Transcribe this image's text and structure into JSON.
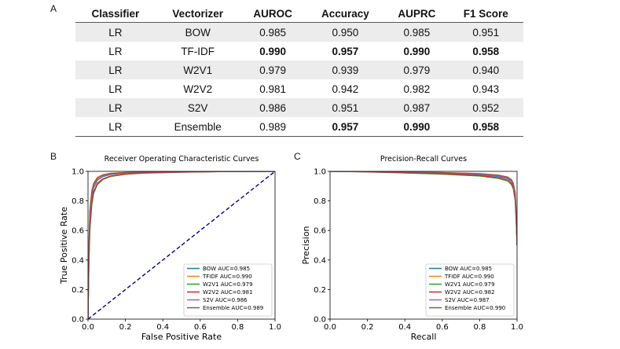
{
  "panels": {
    "a": "A",
    "b": "B",
    "c": "C"
  },
  "table": {
    "headers": [
      "Classifier",
      "Vectorizer",
      "AUROC",
      "Accuracy",
      "AUPRC",
      "F1 Score"
    ],
    "rows": [
      {
        "cells": [
          "LR",
          "BOW",
          "0.985",
          "0.950",
          "0.985",
          "0.951"
        ],
        "bold": [
          false,
          false,
          false,
          false,
          false,
          false
        ]
      },
      {
        "cells": [
          "LR",
          "TF-IDF",
          "0.990",
          "0.957",
          "0.990",
          "0.958"
        ],
        "bold": [
          false,
          false,
          true,
          true,
          true,
          true
        ]
      },
      {
        "cells": [
          "LR",
          "W2V1",
          "0.979",
          "0.939",
          "0.979",
          "0.940"
        ],
        "bold": [
          false,
          false,
          false,
          false,
          false,
          false
        ]
      },
      {
        "cells": [
          "LR",
          "W2V2",
          "0.981",
          "0.942",
          "0.982",
          "0.943"
        ],
        "bold": [
          false,
          false,
          false,
          false,
          false,
          false
        ]
      },
      {
        "cells": [
          "LR",
          "S2V",
          "0.986",
          "0.951",
          "0.987",
          "0.952"
        ],
        "bold": [
          false,
          false,
          false,
          false,
          false,
          false
        ]
      },
      {
        "cells": [
          "LR",
          "Ensemble",
          "0.989",
          "0.957",
          "0.990",
          "0.958"
        ],
        "bold": [
          false,
          false,
          false,
          true,
          true,
          true
        ]
      }
    ]
  },
  "chart_data": [
    {
      "type": "line",
      "title": "Receiver Operating Characteristic Curves",
      "xlabel": "False Positive Rate",
      "ylabel": "True Positive Rate",
      "xlim": [
        0,
        1
      ],
      "ylim": [
        0,
        1
      ],
      "xticks": [
        "0.0",
        "0.2",
        "0.4",
        "0.6",
        "0.8",
        "1.0"
      ],
      "yticks": [
        "0.0",
        "0.2",
        "0.4",
        "0.6",
        "0.8",
        "1.0"
      ],
      "legend_position": "bottom-right",
      "diagonal": {
        "x": [
          0,
          1
        ],
        "y": [
          0,
          1
        ],
        "color": "#00008b"
      },
      "series": [
        {
          "name": "BOW AUC=0.985",
          "color": "#1f77b4",
          "x": [
            0,
            0.005,
            0.01,
            0.02,
            0.03,
            0.05,
            0.08,
            0.12,
            0.2,
            0.3,
            0.5,
            0.7,
            1.0
          ],
          "y": [
            0,
            0.45,
            0.68,
            0.83,
            0.89,
            0.94,
            0.965,
            0.978,
            0.988,
            0.993,
            0.997,
            0.999,
            1.0
          ]
        },
        {
          "name": "TFIDF AUC=0.990",
          "color": "#ff7f0e",
          "x": [
            0,
            0.005,
            0.01,
            0.02,
            0.03,
            0.05,
            0.08,
            0.12,
            0.2,
            0.3,
            0.5,
            0.7,
            1.0
          ],
          "y": [
            0,
            0.5,
            0.74,
            0.87,
            0.92,
            0.96,
            0.978,
            0.987,
            0.993,
            0.996,
            0.998,
            0.999,
            1.0
          ]
        },
        {
          "name": "W2V1 AUC=0.979",
          "color": "#2ca02c",
          "x": [
            0,
            0.005,
            0.01,
            0.02,
            0.03,
            0.05,
            0.08,
            0.12,
            0.2,
            0.3,
            0.5,
            0.7,
            1.0
          ],
          "y": [
            0,
            0.38,
            0.6,
            0.77,
            0.85,
            0.91,
            0.945,
            0.965,
            0.98,
            0.988,
            0.994,
            0.998,
            1.0
          ]
        },
        {
          "name": "W2V2 AUC=0.981",
          "color": "#d62728",
          "x": [
            0,
            0.005,
            0.01,
            0.02,
            0.03,
            0.05,
            0.08,
            0.12,
            0.2,
            0.3,
            0.5,
            0.7,
            1.0
          ],
          "y": [
            0,
            0.4,
            0.62,
            0.79,
            0.86,
            0.92,
            0.95,
            0.968,
            0.982,
            0.989,
            0.995,
            0.998,
            1.0
          ]
        },
        {
          "name": "S2V AUC=0.986",
          "color": "#9467bd",
          "x": [
            0,
            0.005,
            0.01,
            0.02,
            0.03,
            0.05,
            0.08,
            0.12,
            0.2,
            0.3,
            0.5,
            0.7,
            1.0
          ],
          "y": [
            0,
            0.46,
            0.69,
            0.84,
            0.9,
            0.945,
            0.968,
            0.98,
            0.989,
            0.994,
            0.997,
            0.999,
            1.0
          ]
        },
        {
          "name": "Ensemble AUC=0.989",
          "color": "#8c564b",
          "x": [
            0,
            0.005,
            0.01,
            0.02,
            0.03,
            0.05,
            0.08,
            0.12,
            0.2,
            0.3,
            0.5,
            0.7,
            1.0
          ],
          "y": [
            0,
            0.49,
            0.73,
            0.86,
            0.915,
            0.955,
            0.975,
            0.985,
            0.992,
            0.995,
            0.998,
            0.999,
            1.0
          ]
        }
      ]
    },
    {
      "type": "line",
      "title": "Precision-Recall Curves",
      "xlabel": "Recall",
      "ylabel": "Precision",
      "xlim": [
        0,
        1
      ],
      "ylim": [
        0,
        1
      ],
      "xticks": [
        "0.0",
        "0.2",
        "0.4",
        "0.6",
        "0.8",
        "1.0"
      ],
      "yticks": [
        "0.0",
        "0.2",
        "0.4",
        "0.6",
        "0.8",
        "1.0"
      ],
      "legend_position": "bottom-right",
      "series": [
        {
          "name": "BOW AUC=0.985",
          "color": "#1f77b4",
          "x": [
            0,
            0.2,
            0.4,
            0.6,
            0.8,
            0.9,
            0.95,
            0.97,
            0.98,
            0.99,
            0.995,
            1.0
          ],
          "y": [
            1.0,
            0.998,
            0.994,
            0.988,
            0.978,
            0.965,
            0.95,
            0.93,
            0.9,
            0.83,
            0.7,
            0.5
          ]
        },
        {
          "name": "TFIDF AUC=0.990",
          "color": "#ff7f0e",
          "x": [
            0,
            0.2,
            0.4,
            0.6,
            0.8,
            0.9,
            0.95,
            0.97,
            0.98,
            0.99,
            0.995,
            1.0
          ],
          "y": [
            1.0,
            0.999,
            0.996,
            0.992,
            0.985,
            0.975,
            0.962,
            0.945,
            0.92,
            0.86,
            0.74,
            0.5
          ]
        },
        {
          "name": "W2V1 AUC=0.979",
          "color": "#2ca02c",
          "x": [
            0,
            0.2,
            0.4,
            0.6,
            0.8,
            0.9,
            0.95,
            0.97,
            0.98,
            0.99,
            0.995,
            1.0
          ],
          "y": [
            1.0,
            0.996,
            0.989,
            0.981,
            0.968,
            0.952,
            0.935,
            0.91,
            0.88,
            0.8,
            0.66,
            0.5
          ]
        },
        {
          "name": "W2V2 AUC=0.982",
          "color": "#d62728",
          "x": [
            0,
            0.2,
            0.4,
            0.6,
            0.8,
            0.9,
            0.95,
            0.97,
            0.98,
            0.99,
            0.995,
            1.0
          ],
          "y": [
            1.0,
            0.997,
            0.991,
            0.984,
            0.972,
            0.957,
            0.94,
            0.918,
            0.89,
            0.81,
            0.68,
            0.5
          ]
        },
        {
          "name": "S2V AUC=0.987",
          "color": "#9467bd",
          "x": [
            0,
            0.2,
            0.4,
            0.6,
            0.8,
            0.9,
            0.95,
            0.97,
            0.98,
            0.99,
            0.995,
            1.0
          ],
          "y": [
            1.0,
            0.998,
            0.995,
            0.99,
            0.981,
            0.969,
            0.955,
            0.935,
            0.905,
            0.84,
            0.71,
            0.5
          ]
        },
        {
          "name": "Ensemble AUC=0.990",
          "color": "#8c564b",
          "x": [
            0,
            0.2,
            0.4,
            0.6,
            0.8,
            0.9,
            0.95,
            0.97,
            0.98,
            0.99,
            0.995,
            1.0
          ],
          "y": [
            1.0,
            0.999,
            0.996,
            0.992,
            0.984,
            0.974,
            0.96,
            0.942,
            0.915,
            0.855,
            0.73,
            0.5
          ]
        }
      ]
    }
  ]
}
